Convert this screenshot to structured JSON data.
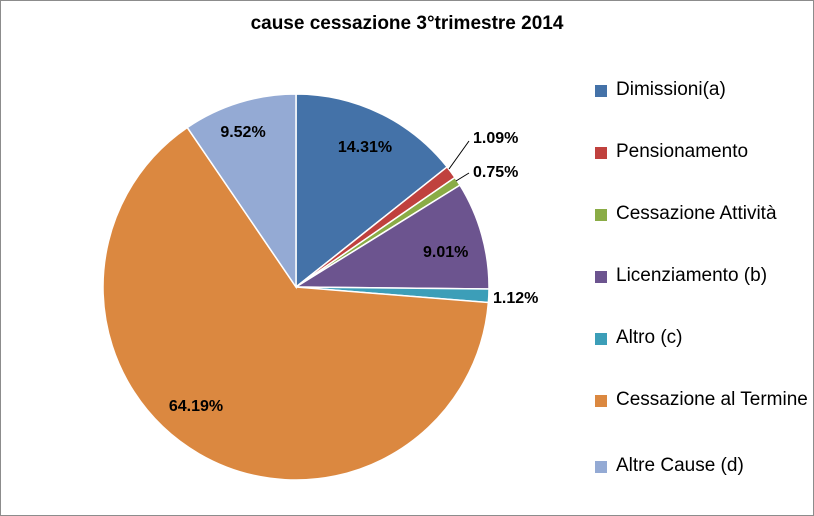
{
  "chart_data": {
    "type": "pie",
    "title": "cause cessazione 3°trimestre 2014",
    "slices": [
      {
        "name": "Dimissioni(a)",
        "value": 14.31,
        "label": "14.31%",
        "color": "#4472a8"
      },
      {
        "name": "Pensionamento",
        "value": 1.09,
        "label": "1.09%",
        "color": "#c0413e"
      },
      {
        "name": "Cessazione Attività",
        "value": 0.75,
        "label": "0.75%",
        "color": "#8aac46"
      },
      {
        "name": "Licenziamento (b)",
        "value": 9.01,
        "label": "9.01%",
        "color": "#6c548f"
      },
      {
        "name": "Altro (c)",
        "value": 1.12,
        "label": "1.12%",
        "color": "#3c9eb8"
      },
      {
        "name": "Cessazione al Termine",
        "value": 64.19,
        "label": "64.19%",
        "color": "#db8840"
      },
      {
        "name": "Altre Cause (d)",
        "value": 9.52,
        "label": "9.52%",
        "color": "#94aad4"
      }
    ],
    "legend_position": "right"
  }
}
